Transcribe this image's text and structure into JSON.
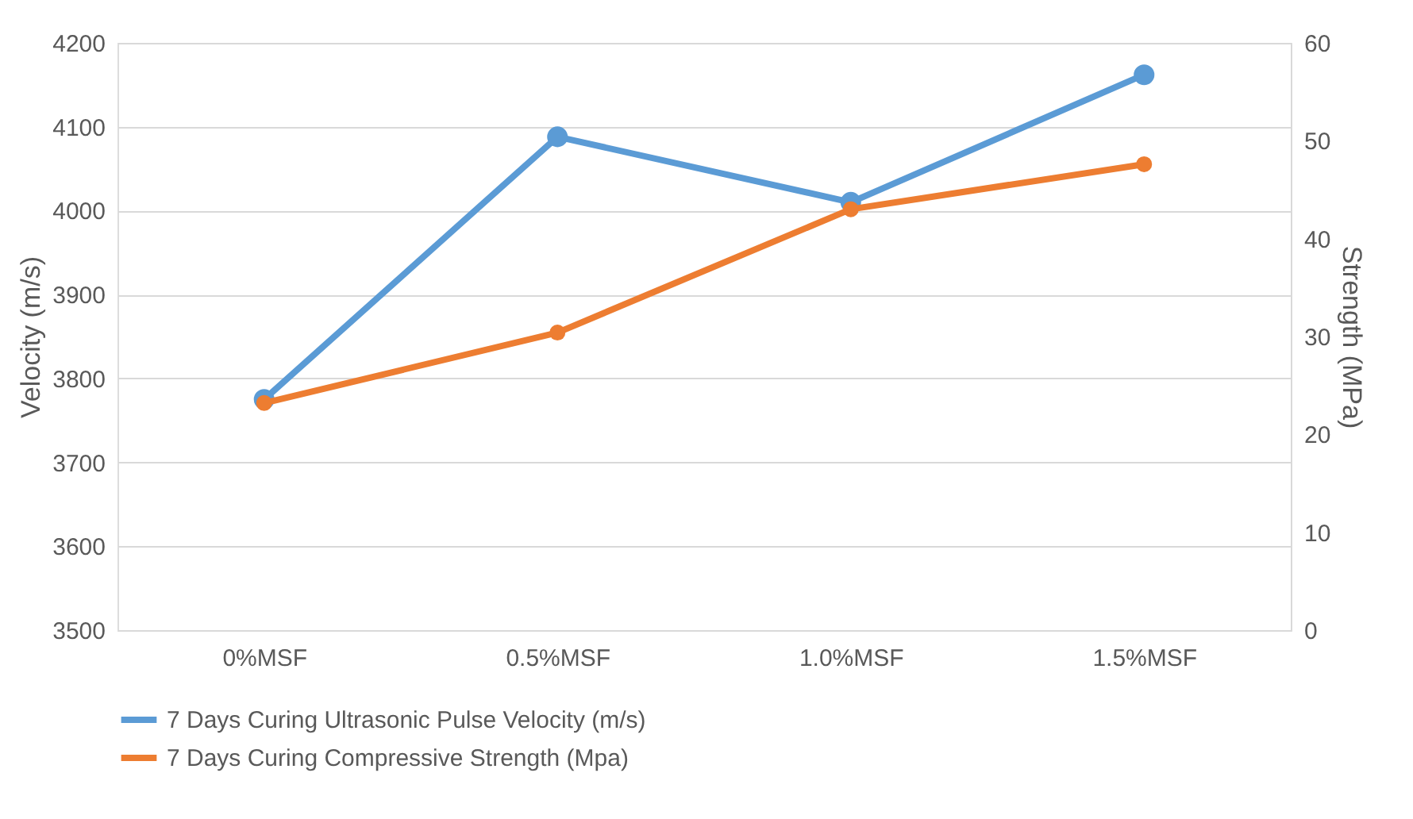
{
  "chart_data": {
    "type": "line",
    "ylabel": "Velocity (m/s)",
    "y2label": "Strength (MPa)",
    "categories": [
      "0%MSF",
      "0.5%MSF",
      "1.0%MSF",
      "1.5%MSF"
    ],
    "series": [
      {
        "name": "7 Days Curing Ultrasonic Pulse Velocity (m/s)",
        "color": "#5b9bd5",
        "values": [
          3775,
          4088,
          4010,
          4162
        ]
      },
      {
        "name": "7 Days Curing Compressive Strength (Mpa)",
        "color": "#ed7d31",
        "values": [
          23.2,
          30.4,
          43.0,
          47.6
        ],
        "axis": "y2"
      }
    ],
    "ylim": [
      3500,
      4200
    ],
    "yticks": [
      3500,
      3600,
      3700,
      3800,
      3900,
      4000,
      4100,
      4200
    ],
    "y2lim": [
      0,
      60
    ],
    "y2ticks": [
      0,
      10,
      20,
      30,
      40,
      50,
      60
    ],
    "grid": "y",
    "legend": "bottom",
    "marker": "circle",
    "line_style": "solid"
  }
}
